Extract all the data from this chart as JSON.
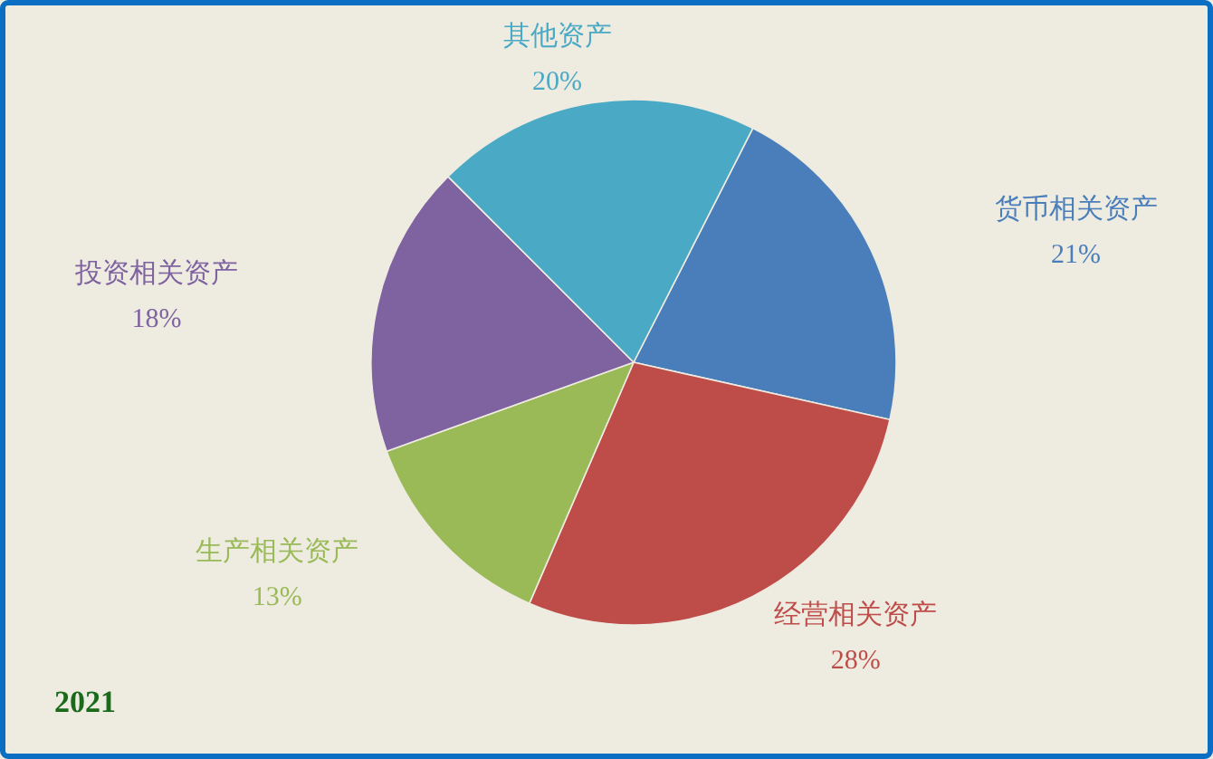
{
  "chart_data": {
    "type": "pie",
    "categories": [
      "货币相关资产",
      "经营相关资产",
      "生产相关资产",
      "投资相关资产",
      "其他资产"
    ],
    "values": [
      21,
      28,
      13,
      18,
      20
    ],
    "colors": [
      "#4a7eba",
      "#be4d4a",
      "#9aba58",
      "#7f62a0",
      "#4aa9c4"
    ],
    "value_labels": [
      "21%",
      "28%",
      "13%",
      "18%",
      "20%"
    ],
    "annotations": [
      "2021"
    ]
  }
}
